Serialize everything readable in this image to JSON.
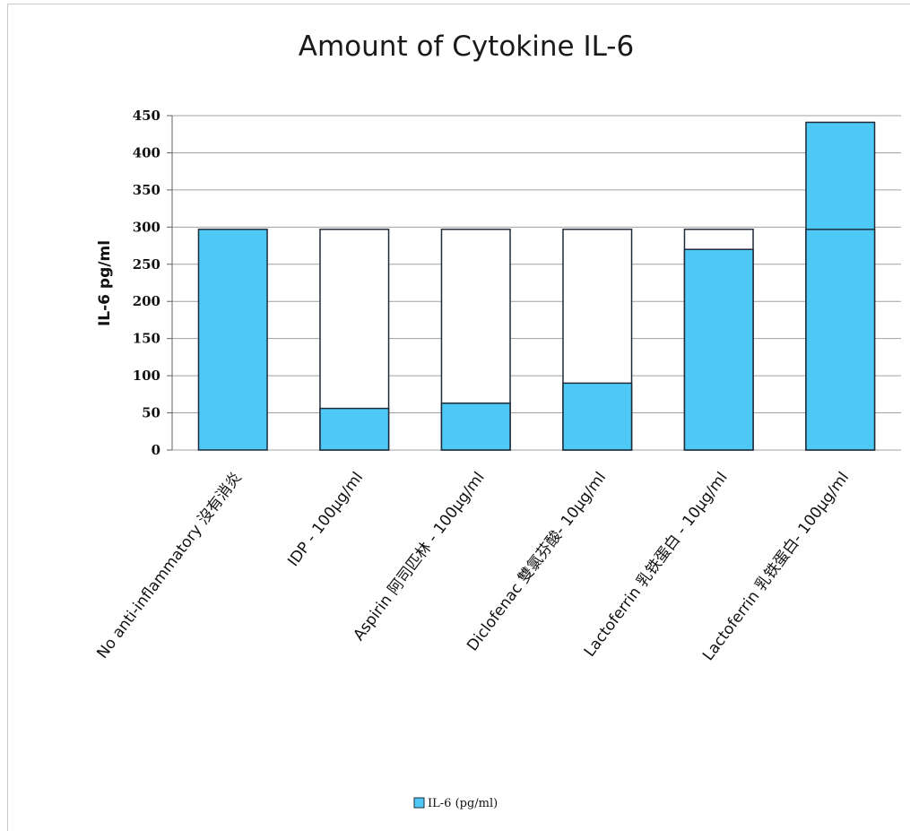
{
  "chart_data": {
    "type": "bar",
    "title": "Amount of Cytokine IL-6",
    "ylabel": "IL-6 pg/ml",
    "xlabel": "",
    "ylim": [
      0,
      450
    ],
    "yticks": [
      0,
      50,
      100,
      150,
      200,
      250,
      300,
      350,
      400,
      450
    ],
    "grid": true,
    "legend_position": "bottom",
    "categories": [
      "No anti-inflammatory 沒有消炎",
      "IDP - 100µg/ml",
      "Aspirin 阿司匹林 - 100µg/ml",
      "Diclofenac 雙氯芬酸- 10µg/ml",
      "Lactoferrin 乳铁蛋白 - 10µg/ml",
      "Lactoferrin 乳铁蛋白- 100µg/ml"
    ],
    "series": [
      {
        "name": "IL-6 (pg/ml)",
        "values": [
          297,
          56,
          63,
          90,
          270,
          441
        ]
      }
    ],
    "baseline_reference": 297,
    "colors": {
      "bar": "#4ec9f5",
      "outline": "#1f2a3a",
      "grid": "#a0a0a0"
    }
  }
}
